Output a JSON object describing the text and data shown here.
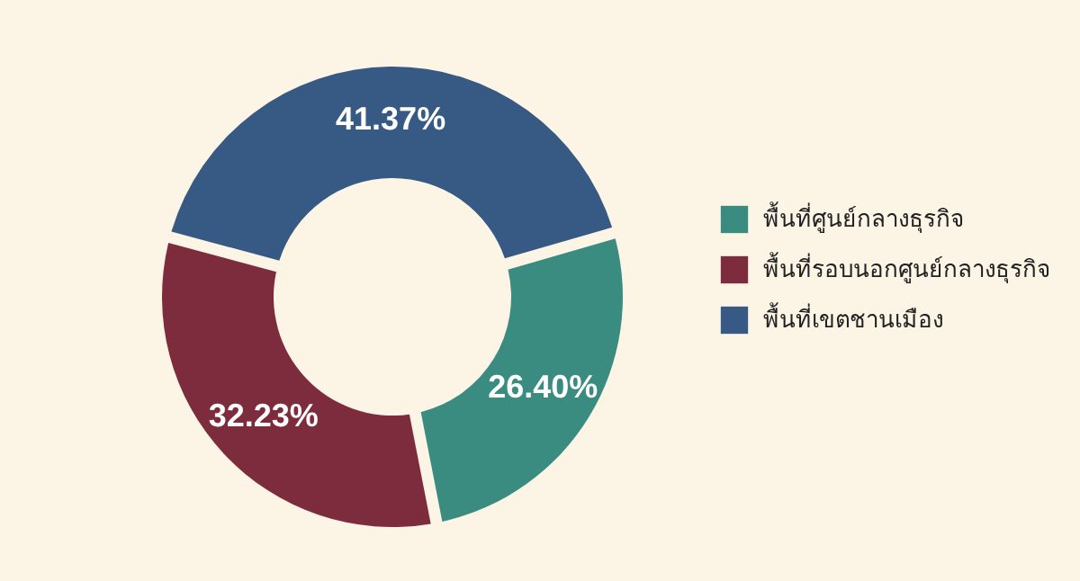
{
  "chart_data": {
    "type": "donut",
    "categories": [
      "พื้นที่ศูนย์กลางธุรกิจ",
      "พื้นที่รอบนอกศูนย์กลางธุรกิจ",
      "พื้นที่เขตชานเมือง"
    ],
    "values": [
      26.4,
      32.23,
      41.37
    ],
    "colors": [
      "#3a8c80",
      "#7d2c3d",
      "#365a83"
    ],
    "value_labels": [
      "26.40%",
      "32.23%",
      "41.37%"
    ],
    "legend": "right"
  }
}
